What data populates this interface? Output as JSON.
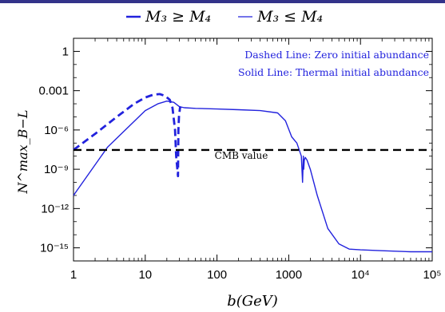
{
  "chart_data": {
    "type": "line",
    "legend": {
      "placement": "top-center",
      "entries": [
        "M₃ ≥ M₄",
        "M₃ ≤ M₄"
      ]
    },
    "xlabel": "b(GeV)",
    "ylabel": "N^max_B−L",
    "xscale": "log",
    "yscale": "log",
    "xlim": [
      1,
      100000
    ],
    "ylim": [
      1e-16,
      10
    ],
    "x_ticks": [
      "1",
      "10",
      "100",
      "1000",
      "10⁴",
      "10⁵"
    ],
    "y_ticks": [
      "1",
      "0.001",
      "10⁻⁶",
      "10⁻⁹",
      "10⁻¹²",
      "10⁻¹⁵"
    ],
    "annotations": {
      "dashed": "Dashed Line: Zero initial abundance",
      "solid": "Solid Line: Thermal initial abundance",
      "cmb": "CMB value"
    },
    "colors": {
      "series": "#2222dd",
      "cmb": "#000000",
      "header_rule": "#33338a"
    },
    "series": [
      {
        "style": "dashed",
        "x": [
          1,
          2,
          4,
          7,
          10,
          13,
          16,
          19,
          22,
          24,
          26,
          27,
          28,
          28.6,
          29,
          29.5,
          30.5,
          31.5
        ],
        "y": [
          3e-08,
          5e-07,
          1e-05,
          0.0001,
          0.0003,
          0.0005,
          0.00055,
          0.0004,
          0.0002,
          5e-05,
          1e-06,
          1e-08,
          1e-09,
          3e-10,
          1e-06,
          1e-05,
          5e-05,
          6e-05
        ]
      },
      {
        "style": "solid",
        "x": [
          1,
          3,
          10,
          15,
          20,
          25,
          30,
          35,
          50,
          100,
          200,
          400,
          700,
          900,
          1100,
          1300,
          1500,
          1560,
          1600,
          1620,
          1650,
          1700,
          1800,
          2000,
          2500,
          3500,
          5000,
          7000,
          10000,
          20000,
          50000,
          100000
        ],
        "y": [
          1e-11,
          5e-08,
          3e-05,
          0.0001,
          0.00016,
          0.00013,
          6e-05,
          5e-05,
          4.5e-05,
          4e-05,
          3.5e-05,
          3e-05,
          2e-05,
          5e-06,
          3e-07,
          1e-07,
          1e-08,
          1e-10,
          1e-08,
          1e-09,
          5e-09,
          8e-09,
          5e-09,
          1e-09,
          1e-11,
          3e-14,
          2e-15,
          8e-16,
          7e-16,
          6e-16,
          5e-16,
          5e-16
        ]
      },
      {
        "style": "dashed",
        "label": "CMB value",
        "x": [
          1,
          100000
        ],
        "y": [
          3e-08,
          3e-08
        ]
      }
    ]
  }
}
